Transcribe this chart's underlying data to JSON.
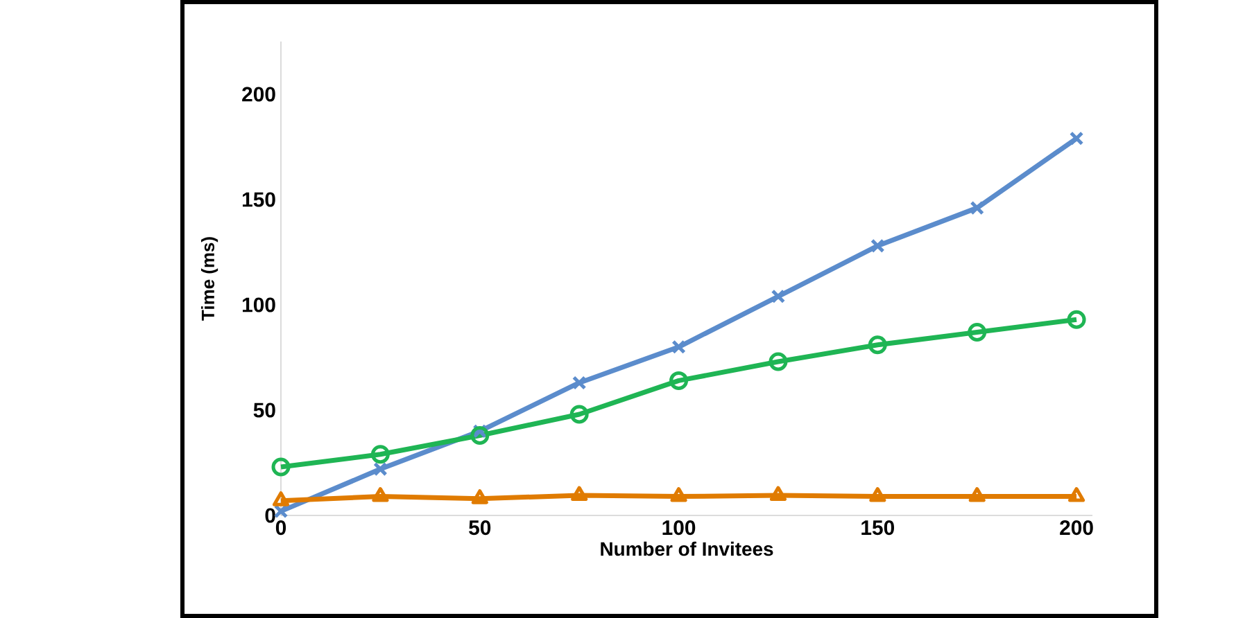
{
  "chart_data": {
    "type": "line",
    "xlabel": "Number of Invitees",
    "ylabel": "Time (ms)",
    "x": [
      0,
      25,
      50,
      75,
      100,
      125,
      150,
      175,
      200
    ],
    "xlim": [
      0,
      204
    ],
    "ylim": [
      0,
      225
    ],
    "xticks": [
      0,
      50,
      100,
      150,
      200
    ],
    "yticks": [
      0,
      50,
      100,
      150,
      200
    ],
    "grid": false,
    "line_style": "solid",
    "series": [
      {
        "color": "#5b8ccc",
        "marker": "cross",
        "values": [
          2,
          22,
          40,
          63,
          80,
          104,
          128,
          146,
          179
        ]
      },
      {
        "color": "#1fb554",
        "marker": "circle",
        "values": [
          23,
          29,
          38,
          48,
          64,
          73,
          81,
          87,
          93
        ]
      },
      {
        "color": "#e07b00",
        "marker": "triangle",
        "values": [
          7,
          9,
          8,
          9.5,
          9,
          9.5,
          9,
          9,
          9
        ]
      }
    ]
  }
}
